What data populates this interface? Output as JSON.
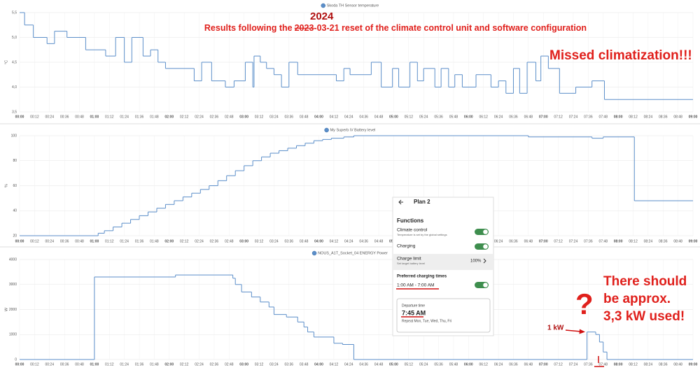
{
  "chart_data": [
    {
      "type": "line",
      "drawstyle": "steps-post",
      "ylabel": "°C",
      "grid": true,
      "xlim": [
        0,
        540
      ],
      "ylim": [
        3.5,
        5.5
      ],
      "yticks": [
        {
          "value": 3.5,
          "label": "3,5"
        },
        {
          "value": 4,
          "label": "4,0"
        },
        {
          "value": 4.5,
          "label": "4,5"
        },
        {
          "value": 5,
          "label": "5,0"
        },
        {
          "value": 5.5,
          "label": "5,5"
        }
      ],
      "xticks": [
        {
          "value": 0,
          "label": "00:00"
        },
        {
          "value": 12,
          "label": "00:12"
        },
        {
          "value": 24,
          "label": "00:24"
        },
        {
          "value": 36,
          "label": "00:36"
        },
        {
          "value": 48,
          "label": "00:48"
        },
        {
          "value": 60,
          "label": "01:00"
        },
        {
          "value": 72,
          "label": "01:12"
        },
        {
          "value": 84,
          "label": "01:24"
        },
        {
          "value": 96,
          "label": "01:36"
        },
        {
          "value": 108,
          "label": "01:48"
        },
        {
          "value": 120,
          "label": "02:00"
        },
        {
          "value": 132,
          "label": "02:12"
        },
        {
          "value": 144,
          "label": "02:24"
        },
        {
          "value": 156,
          "label": "02:36"
        },
        {
          "value": 168,
          "label": "02:48"
        },
        {
          "value": 180,
          "label": "03:00"
        },
        {
          "value": 192,
          "label": "03:12"
        },
        {
          "value": 204,
          "label": "03:24"
        },
        {
          "value": 216,
          "label": "03:36"
        },
        {
          "value": 228,
          "label": "03:48"
        },
        {
          "value": 240,
          "label": "04:00"
        },
        {
          "value": 252,
          "label": "04:12"
        },
        {
          "value": 264,
          "label": "04:24"
        },
        {
          "value": 276,
          "label": "04:36"
        },
        {
          "value": 288,
          "label": "04:48"
        },
        {
          "value": 300,
          "label": "05:00"
        },
        {
          "value": 312,
          "label": "05:12"
        },
        {
          "value": 324,
          "label": "05:24"
        },
        {
          "value": 336,
          "label": "05:36"
        },
        {
          "value": 348,
          "label": "05:48"
        },
        {
          "value": 360,
          "label": "06:00"
        },
        {
          "value": 372,
          "label": "06:12"
        },
        {
          "value": 384,
          "label": "06:24"
        },
        {
          "value": 396,
          "label": "06:36"
        },
        {
          "value": 408,
          "label": "06:48"
        },
        {
          "value": 420,
          "label": "07:00"
        },
        {
          "value": 432,
          "label": "07:12"
        },
        {
          "value": 444,
          "label": "07:24"
        },
        {
          "value": 456,
          "label": "07:36"
        },
        {
          "value": 468,
          "label": "07:48"
        },
        {
          "value": 480,
          "label": "08:00"
        },
        {
          "value": 492,
          "label": "08:12"
        },
        {
          "value": 504,
          "label": "08:24"
        },
        {
          "value": 516,
          "label": "08:36"
        },
        {
          "value": 528,
          "label": "08:48"
        },
        {
          "value": 540,
          "label": "09:00"
        }
      ],
      "series": [
        {
          "name": "Skoda TH Sensor temperature",
          "color": "#5b8ec9",
          "x": [
            0,
            4,
            11,
            22,
            28,
            38,
            53,
            69,
            77,
            84,
            90,
            99,
            105,
            111,
            117,
            140,
            146,
            154,
            165,
            172,
            181,
            187,
            188,
            193,
            198,
            204,
            210,
            216,
            223,
            254,
            260,
            265,
            282,
            290,
            299,
            304,
            313,
            319,
            324,
            333,
            338,
            344,
            349,
            355,
            366,
            378,
            384,
            390,
            396,
            401,
            407,
            414,
            418,
            424,
            433,
            446,
            459,
            469,
            540
          ],
          "values": [
            5.5,
            5.25,
            5.0,
            4.875,
            5.125,
            5.0,
            4.75,
            4.625,
            5.0,
            4.5,
            5.0,
            4.625,
            4.75,
            4.5,
            4.375,
            4.125,
            4.5,
            4.125,
            4.0,
            4.125,
            4.5,
            4.0,
            4.625,
            4.5,
            4.375,
            4.25,
            4.0,
            4.5,
            4.25,
            4.125,
            4.375,
            4.25,
            4.5,
            4.0,
            4.375,
            4.0,
            4.5,
            4.125,
            4.375,
            4.0,
            4.375,
            4.0,
            4.25,
            4.0,
            4.25,
            4.0,
            4.125,
            3.875,
            4.375,
            3.875,
            4.5,
            4.125,
            4.625,
            4.375,
            3.875,
            4.0,
            4.125,
            3.75,
            3.75
          ]
        }
      ]
    },
    {
      "type": "line",
      "drawstyle": "steps-post",
      "ylabel": "%",
      "grid": true,
      "xlim": [
        0,
        540
      ],
      "ylim": [
        20,
        100
      ],
      "yticks": [
        20,
        40,
        60,
        80,
        100
      ],
      "xticks": [
        {
          "value": 0,
          "label": "00:00"
        },
        {
          "value": 12,
          "label": "00:12"
        },
        {
          "value": 24,
          "label": "00:24"
        },
        {
          "value": 36,
          "label": "00:36"
        },
        {
          "value": 48,
          "label": "00:48"
        },
        {
          "value": 60,
          "label": "01:00"
        },
        {
          "value": 72,
          "label": "01:12"
        },
        {
          "value": 84,
          "label": "01:24"
        },
        {
          "value": 96,
          "label": "01:36"
        },
        {
          "value": 108,
          "label": "01:48"
        },
        {
          "value": 120,
          "label": "02:00"
        },
        {
          "value": 132,
          "label": "02:12"
        },
        {
          "value": 144,
          "label": "02:24"
        },
        {
          "value": 156,
          "label": "02:36"
        },
        {
          "value": 168,
          "label": "02:48"
        },
        {
          "value": 180,
          "label": "03:00"
        },
        {
          "value": 192,
          "label": "03:12"
        },
        {
          "value": 204,
          "label": "03:24"
        },
        {
          "value": 216,
          "label": "03:36"
        },
        {
          "value": 228,
          "label": "03:48"
        },
        {
          "value": 240,
          "label": "04:00"
        },
        {
          "value": 252,
          "label": "04:12"
        },
        {
          "value": 264,
          "label": "04:24"
        },
        {
          "value": 276,
          "label": "04:36"
        },
        {
          "value": 288,
          "label": "04:48"
        },
        {
          "value": 300,
          "label": "05:00"
        },
        {
          "value": 312,
          "label": "05:12"
        },
        {
          "value": 324,
          "label": "05:24"
        },
        {
          "value": 336,
          "label": "05:36"
        },
        {
          "value": 348,
          "label": "05:48"
        },
        {
          "value": 360,
          "label": "06:00"
        },
        {
          "value": 372,
          "label": "06:12"
        },
        {
          "value": 384,
          "label": "06:24"
        },
        {
          "value": 396,
          "label": "06:36"
        },
        {
          "value": 408,
          "label": "06:48"
        },
        {
          "value": 420,
          "label": "07:00"
        },
        {
          "value": 432,
          "label": "07:12"
        },
        {
          "value": 444,
          "label": "07:24"
        },
        {
          "value": 456,
          "label": "07:36"
        },
        {
          "value": 468,
          "label": "07:48"
        },
        {
          "value": 480,
          "label": "08:00"
        },
        {
          "value": 492,
          "label": "08:12"
        },
        {
          "value": 504,
          "label": "08:24"
        },
        {
          "value": 516,
          "label": "08:36"
        },
        {
          "value": 528,
          "label": "08:48"
        },
        {
          "value": 540,
          "label": "09:00"
        }
      ],
      "series": [
        {
          "name": "My Superb iV Battery level",
          "color": "#5b8ec9",
          "x": [
            0,
            63,
            68,
            75,
            82,
            89,
            96,
            103,
            110,
            117,
            124,
            131,
            138,
            145,
            152,
            159,
            166,
            173,
            180,
            187,
            194,
            201,
            208,
            215,
            222,
            229,
            236,
            243,
            250,
            260,
            268,
            408,
            459,
            468,
            493,
            540
          ],
          "values": [
            20,
            22,
            24,
            27,
            30,
            33,
            36,
            39,
            42,
            45,
            48,
            51,
            54,
            57,
            60,
            64,
            68,
            72,
            76,
            80,
            83,
            86,
            88,
            90,
            92,
            94,
            96,
            97,
            98,
            99,
            100,
            99,
            98,
            99,
            48,
            48
          ]
        }
      ]
    },
    {
      "type": "line",
      "drawstyle": "steps-post",
      "ylabel": "W",
      "grid": true,
      "xlim": [
        0,
        540
      ],
      "ylim": [
        0,
        4000
      ],
      "yticks": [
        0,
        1000,
        2000,
        3000,
        4000
      ],
      "xticks": [
        {
          "value": 0,
          "label": "00:00"
        },
        {
          "value": 12,
          "label": "00:12"
        },
        {
          "value": 24,
          "label": "00:24"
        },
        {
          "value": 36,
          "label": "00:36"
        },
        {
          "value": 48,
          "label": "00:48"
        },
        {
          "value": 60,
          "label": "01:00"
        },
        {
          "value": 72,
          "label": "01:12"
        },
        {
          "value": 84,
          "label": "01:24"
        },
        {
          "value": 96,
          "label": "01:36"
        },
        {
          "value": 108,
          "label": "01:48"
        },
        {
          "value": 120,
          "label": "02:00"
        },
        {
          "value": 132,
          "label": "02:12"
        },
        {
          "value": 144,
          "label": "02:24"
        },
        {
          "value": 156,
          "label": "02:36"
        },
        {
          "value": 168,
          "label": "02:48"
        },
        {
          "value": 180,
          "label": "03:00"
        },
        {
          "value": 192,
          "label": "03:12"
        },
        {
          "value": 204,
          "label": "03:24"
        },
        {
          "value": 216,
          "label": "03:36"
        },
        {
          "value": 228,
          "label": "03:48"
        },
        {
          "value": 240,
          "label": "04:00"
        },
        {
          "value": 252,
          "label": "04:12"
        },
        {
          "value": 264,
          "label": "04:24"
        },
        {
          "value": 276,
          "label": "04:36"
        },
        {
          "value": 288,
          "label": "04:48"
        },
        {
          "value": 300,
          "label": "05:00"
        },
        {
          "value": 312,
          "label": "05:12"
        },
        {
          "value": 324,
          "label": "05:24"
        },
        {
          "value": 336,
          "label": "05:36"
        },
        {
          "value": 348,
          "label": "05:48"
        },
        {
          "value": 360,
          "label": "06:00"
        },
        {
          "value": 372,
          "label": "06:12"
        },
        {
          "value": 384,
          "label": "06:24"
        },
        {
          "value": 396,
          "label": "06:36"
        },
        {
          "value": 408,
          "label": "06:48"
        },
        {
          "value": 420,
          "label": "07:00"
        },
        {
          "value": 432,
          "label": "07:12"
        },
        {
          "value": 444,
          "label": "07:24"
        },
        {
          "value": 456,
          "label": "07:36"
        },
        {
          "value": 468,
          "label": "07:48"
        },
        {
          "value": 480,
          "label": "08:00"
        },
        {
          "value": 492,
          "label": "08:12"
        },
        {
          "value": 504,
          "label": "08:24"
        },
        {
          "value": 516,
          "label": "08:36"
        },
        {
          "value": 528,
          "label": "08:48"
        },
        {
          "value": 540,
          "label": "09:00"
        }
      ],
      "series": [
        {
          "name": "NOUS_A1T_Socket_04 ENERGY Power",
          "color": "#5b8ec9",
          "x": [
            0,
            60,
            125,
            171,
            173,
            178,
            186,
            193,
            200,
            204,
            214,
            223,
            228,
            231,
            236,
            252,
            259,
            268,
            455,
            462,
            465,
            468,
            471,
            540
          ],
          "values": [
            0,
            3300,
            3380,
            3250,
            3000,
            2700,
            2500,
            2300,
            2100,
            1800,
            1700,
            1500,
            1300,
            1100,
            900,
            650,
            600,
            0,
            1100,
            1000,
            700,
            300,
            0,
            0
          ]
        }
      ]
    }
  ],
  "annotations": {
    "year": "2024",
    "results": [
      "Results following the",
      "2023",
      "-03-21 reset of the climate control unit and software configuration"
    ],
    "missed": "Missed climatization!!!",
    "question": "?",
    "expected": [
      "There should",
      "be approx.",
      "3,3 kW used!"
    ],
    "one_kw": "1 kW"
  },
  "phone_screenshot": {
    "title": "Plan 2",
    "section": "Functions",
    "items": [
      {
        "label": "Climate control",
        "sublabel": "Temperature is set by the global settings"
      },
      {
        "label": "Charging"
      },
      {
        "label": "Charge limit",
        "sublabel": "Set target battery level",
        "value": "100%"
      }
    ],
    "preferred_charging_times": {
      "heading": "Preferred charging times",
      "range": "1:00 AM - 7:00 AM"
    },
    "departure": {
      "heading": "Departure time",
      "time": "7:45 AM",
      "repeat": "Repeat Mon, Tue, Wed, Thu, Fri"
    }
  }
}
